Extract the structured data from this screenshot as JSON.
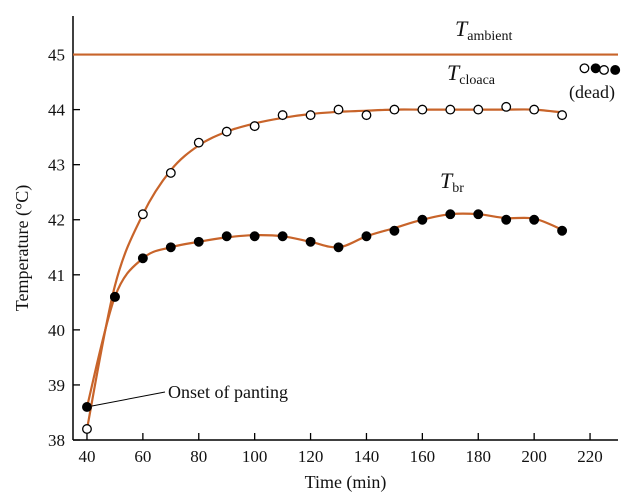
{
  "chart_data": {
    "type": "line",
    "title": "",
    "xlabel": "Time (min)",
    "ylabel": "Temperature (°C)",
    "xlim": [
      35,
      230
    ],
    "ylim": [
      38,
      45.7
    ],
    "xticks": [
      40,
      60,
      80,
      100,
      120,
      140,
      160,
      180,
      200,
      220
    ],
    "yticks": [
      38,
      39,
      40,
      41,
      42,
      43,
      44,
      45
    ],
    "grid": false,
    "colors": {
      "curve": "#c8642a",
      "marker_fill": "#000000",
      "marker_open_fill": "#ffffff",
      "axis": "#000000"
    },
    "series": [
      {
        "name_main": "T",
        "name_sub": "ambient",
        "marker": "none",
        "x": [
          35,
          230
        ],
        "y": [
          45.0,
          45.0
        ]
      },
      {
        "name_main": "T",
        "name_sub": "cloaca",
        "marker": "open",
        "x": [
          40,
          50,
          60,
          70,
          80,
          90,
          100,
          110,
          120,
          130,
          140,
          150,
          160,
          170,
          180,
          190,
          200,
          210
        ],
        "y": [
          38.2,
          40.6,
          42.1,
          42.85,
          43.4,
          43.6,
          43.7,
          43.9,
          43.9,
          44.0,
          43.9,
          44.0,
          44.0,
          44.0,
          44.0,
          44.05,
          44.0,
          43.9
        ],
        "curve_y": [
          38.2,
          40.8,
          42.1,
          42.9,
          43.35,
          43.6,
          43.75,
          43.85,
          43.92,
          43.96,
          43.98,
          44.0,
          44.0,
          44.0,
          44.0,
          44.0,
          44.0,
          43.95
        ]
      },
      {
        "name_main": "T",
        "name_sub": "br",
        "marker": "filled",
        "x": [
          40,
          50,
          60,
          70,
          80,
          90,
          100,
          110,
          120,
          130,
          140,
          150,
          160,
          170,
          180,
          190,
          200,
          210
        ],
        "y": [
          38.6,
          40.6,
          41.3,
          41.5,
          41.6,
          41.7,
          41.7,
          41.7,
          41.6,
          41.5,
          41.7,
          41.8,
          42.0,
          42.1,
          42.1,
          42.0,
          42.0,
          41.8
        ],
        "curve_y": [
          38.6,
          40.6,
          41.3,
          41.5,
          41.6,
          41.68,
          41.72,
          41.7,
          41.6,
          41.5,
          41.7,
          41.85,
          42.0,
          42.1,
          42.1,
          42.03,
          42.02,
          41.82
        ]
      }
    ],
    "dead_points": {
      "x": [
        218,
        222,
        225,
        229
      ],
      "y": [
        44.75,
        44.75,
        44.72,
        44.72
      ],
      "markers": [
        "open",
        "filled",
        "open",
        "filled"
      ],
      "label": "(dead)"
    },
    "annotations": [
      {
        "text": "Onset of panting",
        "x": 40,
        "y": 38.6
      }
    ]
  }
}
